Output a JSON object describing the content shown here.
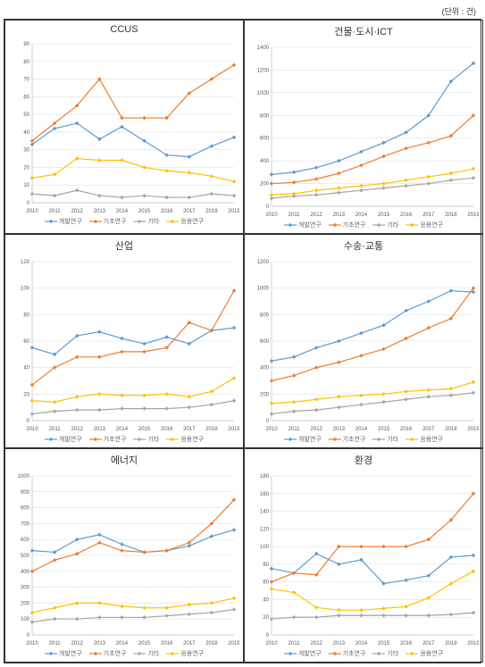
{
  "unit_label": "(단위 : 건)",
  "years": [
    "2010",
    "2011",
    "2012",
    "2013",
    "2014",
    "2015",
    "2016",
    "2017",
    "2018",
    "2019"
  ],
  "series_labels": [
    "개발연구",
    "기초연구",
    "기타",
    "응용연구"
  ],
  "colors": {
    "dev": "#5b9bd5",
    "basic": "#ed7d31",
    "other": "#a5a5a5",
    "applied": "#ffc000",
    "grid": "#d9d9d9",
    "axis": "#bfbfbf",
    "text": "#595959",
    "title": "#333333"
  },
  "charts": [
    {
      "key": "ccus",
      "title": "CCUS",
      "ylim": [
        0,
        90
      ],
      "ytick_step": 10,
      "dev": [
        33,
        42,
        45,
        36,
        43,
        35,
        27,
        26,
        32,
        37
      ],
      "basic": [
        35,
        45,
        55,
        70,
        48,
        48,
        48,
        62,
        70,
        78
      ],
      "other": [
        5,
        4,
        7,
        4,
        3,
        4,
        3,
        3,
        5,
        4
      ],
      "applied": [
        14,
        16,
        25,
        24,
        24,
        20,
        18,
        17,
        15,
        12
      ]
    },
    {
      "key": "bldg",
      "title": "건물·도시·ICT",
      "ylim": [
        0,
        1400
      ],
      "ytick_step": 200,
      "dev": [
        280,
        300,
        340,
        400,
        480,
        560,
        650,
        800,
        1100,
        1260
      ],
      "basic": [
        200,
        210,
        240,
        290,
        360,
        440,
        510,
        560,
        620,
        800
      ],
      "other": [
        70,
        90,
        100,
        120,
        140,
        160,
        180,
        200,
        230,
        250
      ],
      "applied": [
        100,
        110,
        140,
        160,
        180,
        200,
        230,
        260,
        290,
        330
      ]
    },
    {
      "key": "industry",
      "title": "산업",
      "ylim": [
        0,
        120
      ],
      "ytick_step": 20,
      "dev": [
        55,
        50,
        64,
        67,
        62,
        58,
        63,
        58,
        68,
        70
      ],
      "basic": [
        27,
        40,
        48,
        48,
        52,
        52,
        55,
        74,
        68,
        98
      ],
      "other": [
        5,
        7,
        8,
        8,
        9,
        9,
        9,
        10,
        12,
        15
      ],
      "applied": [
        15,
        14,
        18,
        20,
        19,
        19,
        20,
        18,
        22,
        32
      ]
    },
    {
      "key": "transport",
      "title": "수송·교통",
      "ylim": [
        0,
        1200
      ],
      "ytick_step": 200,
      "dev": [
        450,
        480,
        550,
        600,
        660,
        720,
        830,
        900,
        980,
        970
      ],
      "basic": [
        300,
        340,
        400,
        440,
        490,
        540,
        620,
        700,
        770,
        1000
      ],
      "other": [
        50,
        70,
        80,
        100,
        120,
        140,
        160,
        180,
        190,
        210
      ],
      "applied": [
        130,
        140,
        160,
        180,
        190,
        200,
        220,
        230,
        240,
        290
      ]
    },
    {
      "key": "energy",
      "title": "에너지",
      "ylim": [
        0,
        1000
      ],
      "ytick_step": 100,
      "dev": [
        530,
        520,
        600,
        630,
        570,
        520,
        530,
        560,
        620,
        660
      ],
      "basic": [
        400,
        470,
        510,
        580,
        530,
        520,
        530,
        580,
        700,
        850
      ],
      "other": [
        80,
        100,
        100,
        110,
        110,
        110,
        120,
        130,
        140,
        160
      ],
      "applied": [
        140,
        170,
        200,
        200,
        180,
        170,
        170,
        190,
        200,
        230
      ]
    },
    {
      "key": "env",
      "title": "환경",
      "ylim": [
        0,
        180
      ],
      "ytick_step": 20,
      "dev": [
        75,
        70,
        92,
        80,
        85,
        58,
        62,
        67,
        88,
        90
      ],
      "basic": [
        60,
        70,
        68,
        100,
        100,
        100,
        100,
        108,
        130,
        160
      ],
      "other": [
        18,
        20,
        20,
        22,
        22,
        22,
        22,
        22,
        23,
        25
      ],
      "applied": [
        52,
        48,
        31,
        28,
        28,
        30,
        32,
        42,
        58,
        72
      ]
    }
  ]
}
